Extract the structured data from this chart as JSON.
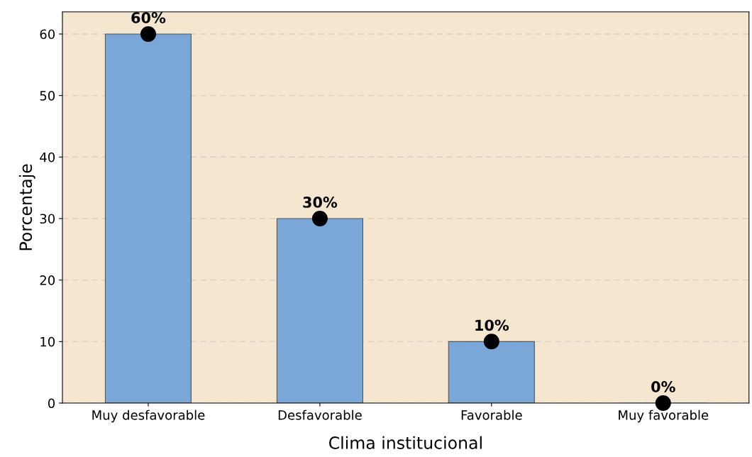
{
  "chart_data": {
    "type": "bar",
    "xlabel": "Clima institucional",
    "ylabel": "Porcentaje",
    "categories": [
      "Muy desfavorable",
      "Desfavorable",
      "Favorable",
      "Muy favorable"
    ],
    "series": [
      {
        "color": "#7ba6d8",
        "values": [
          60,
          30,
          10,
          0
        ],
        "value_labels": [
          "60%",
          "30%",
          "10%",
          "0%"
        ]
      },
      {
        "type": "scatter",
        "color": "#000000",
        "x": [
          "Muy desfavorable",
          "Desfavorable",
          "Favorable",
          "Muy favorable"
        ],
        "values": [
          60,
          30,
          10,
          0
        ]
      }
    ],
    "ylim": [
      0,
      63.6
    ],
    "yticks": [
      0,
      10,
      20,
      30,
      40,
      50,
      60
    ],
    "grid": "y",
    "marker": "circle"
  }
}
